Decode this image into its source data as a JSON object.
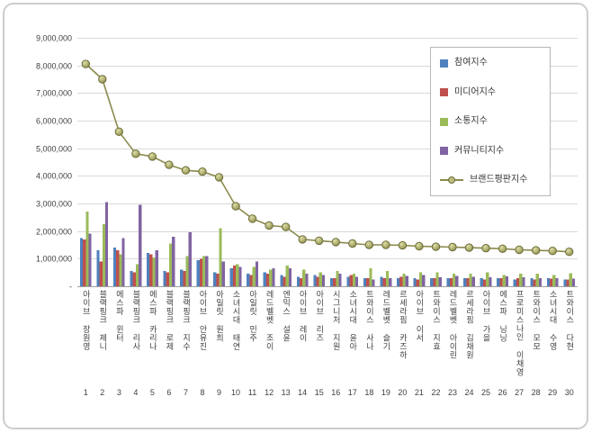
{
  "chart_data": {
    "type": "bar",
    "combo": "clustered-bar-with-line-overlay",
    "title": "",
    "xlabel": "",
    "ylabel": "",
    "ylim": [
      0,
      9000000
    ],
    "ytick_step": 1000000,
    "ytick_labels": [
      "-",
      "1,000,000",
      "2,000,000",
      "3,000,000",
      "4,000,000",
      "5,000,000",
      "6,000,000",
      "7,000,000",
      "8,000,000",
      "9,000,000"
    ],
    "grid": true,
    "legend_position": "top-right",
    "categories": [
      "아이브 장원영",
      "블랙핑크 제니",
      "에스파 윈터",
      "블랙핑크 리사",
      "에스파 카리나",
      "블랙핑크 로제",
      "블랙핑크 지수",
      "아이브 안유진",
      "아일릿 원희",
      "소녀시대 태연",
      "아일릿 민주",
      "레드벨벳 조이",
      "엔믹스 설윤",
      "아이브 레이",
      "아이브 리즈",
      "시그니처 지원",
      "소녀시대 윤아",
      "트와이스 사나",
      "레드벨벳 슬기",
      "르세라핌 카즈하",
      "아이브 이서",
      "트와이스 지효",
      "레드벨벳 아이린",
      "르세라핌 김채원",
      "아이브 가을",
      "에스파 닝닝",
      "프로미스나인 이채영",
      "트와이스 모모",
      "소녀시대 수영",
      "트와이스 다현"
    ],
    "rank_labels": [
      "1",
      "2",
      "3",
      "4",
      "5",
      "6",
      "7",
      "8",
      "9",
      "10",
      "11",
      "12",
      "13",
      "14",
      "15",
      "16",
      "17",
      "18",
      "19",
      "20",
      "21",
      "22",
      "23",
      "24",
      "25",
      "26",
      "27",
      "28",
      "29",
      "30"
    ],
    "series": [
      {
        "name": "참여지수",
        "type": "bar",
        "color": "#4F81BD",
        "values": [
          1750000,
          1300000,
          1400000,
          550000,
          1200000,
          550000,
          600000,
          950000,
          500000,
          650000,
          450000,
          500000,
          400000,
          350000,
          400000,
          300000,
          350000,
          300000,
          350000,
          300000,
          300000,
          300000,
          300000,
          300000,
          300000,
          300000,
          250000,
          300000,
          300000,
          250000
        ]
      },
      {
        "name": "미디어지수",
        "type": "bar",
        "color": "#C0504D",
        "values": [
          1700000,
          900000,
          1300000,
          500000,
          1150000,
          500000,
          550000,
          1000000,
          450000,
          750000,
          400000,
          450000,
          350000,
          300000,
          350000,
          300000,
          400000,
          300000,
          300000,
          350000,
          250000,
          300000,
          300000,
          300000,
          250000,
          300000,
          300000,
          250000,
          280000,
          250000
        ]
      },
      {
        "name": "소통지수",
        "type": "bar",
        "color": "#9BBB59",
        "values": [
          2700000,
          2250000,
          1150000,
          800000,
          1050000,
          1550000,
          1100000,
          1100000,
          2100000,
          800000,
          700000,
          600000,
          750000,
          600000,
          500000,
          550000,
          450000,
          650000,
          550000,
          450000,
          500000,
          500000,
          450000,
          450000,
          500000,
          400000,
          450000,
          450000,
          400000,
          480000
        ]
      },
      {
        "name": "커뮤니티지수",
        "type": "bar",
        "color": "#8064A2",
        "values": [
          1900000,
          3050000,
          1750000,
          2950000,
          1300000,
          1800000,
          1950000,
          1100000,
          900000,
          700000,
          900000,
          650000,
          650000,
          450000,
          400000,
          450000,
          350000,
          250000,
          300000,
          380000,
          400000,
          330000,
          370000,
          350000,
          330000,
          360000,
          320000,
          300000,
          300000,
          270000
        ]
      },
      {
        "name": "브랜드평판지수",
        "type": "line",
        "color": "#8A8A4E",
        "marker_fill": "#BDBD7E",
        "marker_stroke": "#6E6E3C",
        "values": [
          8050000,
          7500000,
          5600000,
          4800000,
          4700000,
          4400000,
          4200000,
          4150000,
          3950000,
          2900000,
          2450000,
          2200000,
          2150000,
          1700000,
          1650000,
          1600000,
          1550000,
          1500000,
          1500000,
          1480000,
          1450000,
          1430000,
          1420000,
          1400000,
          1380000,
          1360000,
          1320000,
          1300000,
          1280000,
          1250000
        ]
      }
    ]
  }
}
